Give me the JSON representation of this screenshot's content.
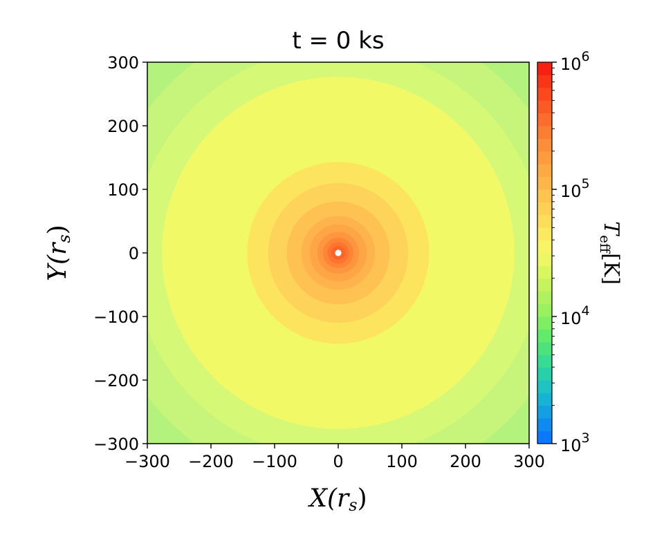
{
  "chart_data": {
    "type": "heatmap",
    "subtype": "filled-contour",
    "title": "t = 0 ks",
    "xlabel": "X(r_s)",
    "xlabel_main": "X(r",
    "xlabel_sub": "s",
    "xlabel_close": ")",
    "ylabel": "Y(r_s)",
    "ylabel_main": "Y(r",
    "ylabel_sub": "s",
    "ylabel_close": ")",
    "xlim": [
      -300,
      300
    ],
    "ylim": [
      -300,
      300
    ],
    "xticks": [
      -300,
      -200,
      -100,
      0,
      100,
      200,
      300
    ],
    "yticks": [
      -300,
      -200,
      -100,
      0,
      100,
      200,
      300
    ],
    "xtick_labels": [
      "−300",
      "−200",
      "−100",
      "0",
      "100",
      "200",
      "300"
    ],
    "ytick_labels": [
      "−300",
      "−200",
      "−100",
      "0",
      "100",
      "200",
      "300"
    ],
    "grid": false,
    "colorbar": {
      "label": "T_eff[K]",
      "label_main": "T",
      "label_sub": "eff",
      "label_unit": "[K]",
      "scale": "log",
      "range": [
        1000,
        1000000
      ],
      "ticks": [
        {
          "value": 1000,
          "base": "10",
          "exp": "3"
        },
        {
          "value": 10000,
          "base": "10",
          "exp": "4"
        },
        {
          "value": 100000,
          "base": "10",
          "exp": "5"
        },
        {
          "value": 1000000,
          "base": "10",
          "exp": "6"
        }
      ],
      "levels": 30,
      "colormap": "turbo-like"
    },
    "contours": [
      {
        "radius": 420,
        "color": "#b4f27e"
      },
      {
        "radius": 375,
        "color": "#c7f47a"
      },
      {
        "radius": 323,
        "color": "#d5f876"
      },
      {
        "radius": 277,
        "color": "#f1f966"
      },
      {
        "radius": 143,
        "color": "#fde45e"
      },
      {
        "radius": 110,
        "color": "#fdd35a"
      },
      {
        "radius": 81,
        "color": "#fec253"
      },
      {
        "radius": 58,
        "color": "#feb34c"
      },
      {
        "radius": 45,
        "color": "#fea646"
      },
      {
        "radius": 33,
        "color": "#fe9640"
      },
      {
        "radius": 24,
        "color": "#fe8536"
      },
      {
        "radius": 17,
        "color": "#fd7430"
      },
      {
        "radius": 11,
        "color": "#fc6428"
      },
      {
        "radius": 5,
        "color": "#ffffff"
      }
    ],
    "colorbar_colors": [
      "#0a78ff",
      "#0e8bf2",
      "#129fe4",
      "#17b3d4",
      "#1ec4c1",
      "#28d0a9",
      "#36dc91",
      "#4ae47a",
      "#62eb6a",
      "#7eef63",
      "#99f15f",
      "#b0f25d",
      "#c6f35c",
      "#daf65e",
      "#ebf862",
      "#f8f466",
      "#fde95f",
      "#fedd59",
      "#fed153",
      "#fec44d",
      "#feb747",
      "#feaa42",
      "#fe9c3d",
      "#fe8d37",
      "#fd7d31",
      "#fc6c2b",
      "#fb5a25",
      "#fa481f",
      "#f93518",
      "#f82010"
    ]
  }
}
